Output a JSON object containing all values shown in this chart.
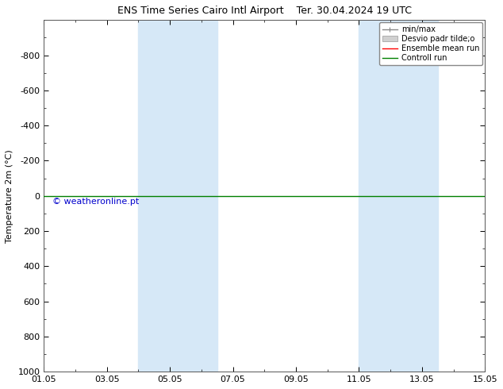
{
  "title_left": "ENS Time Series Cairo Intl Airport",
  "title_right": "Ter. 30.04.2024 19 UTC",
  "ylabel": "Temperature 2m (°C)",
  "ylim": [
    -1000,
    1000
  ],
  "yticks": [
    -800,
    -600,
    -400,
    -200,
    0,
    200,
    400,
    600,
    800,
    1000
  ],
  "xtick_labels": [
    "01.05",
    "03.05",
    "05.05",
    "07.05",
    "09.05",
    "11.05",
    "13.05",
    "15.05"
  ],
  "xtick_positions": [
    0,
    2,
    4,
    6,
    8,
    10,
    12,
    14
  ],
  "shaded_bands": [
    {
      "start": 3.0,
      "end": 5.5
    },
    {
      "start": 10.0,
      "end": 12.5
    }
  ],
  "band_color": "#d6e8f7",
  "green_line_y": 0,
  "green_line_color": "#008000",
  "red_line_y": 0,
  "red_line_color": "#ff0000",
  "watermark": "© weatheronline.pt",
  "watermark_color": "#0000cc",
  "background_color": "#ffffff",
  "legend_entries": [
    {
      "label": "min/max"
    },
    {
      "label": "Desvio padr tilde;o"
    },
    {
      "label": "Ensemble mean run"
    },
    {
      "label": "Controll run"
    }
  ],
  "figsize": [
    6.34,
    4.9
  ],
  "dpi": 100,
  "font_size": 8,
  "title_font_size": 9
}
